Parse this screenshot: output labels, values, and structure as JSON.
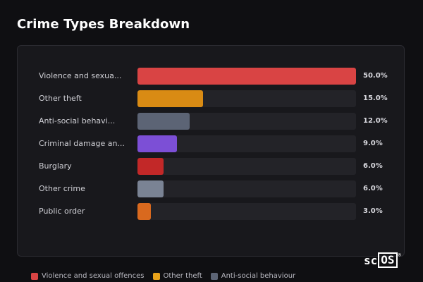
{
  "title": "Crime Types Breakdown",
  "chart_data": {
    "type": "bar",
    "orientation": "horizontal",
    "title": "Crime Types Breakdown",
    "categories": [
      "Violence and sexua...",
      "Other theft",
      "Anti-social behavi...",
      "Criminal damage an...",
      "Burglary",
      "Other crime",
      "Public order"
    ],
    "values": [
      50.0,
      15.0,
      12.0,
      9.0,
      6.0,
      6.0,
      3.0
    ],
    "value_labels": [
      "50.0%",
      "15.0%",
      "12.0%",
      "9.0%",
      "6.0%",
      "6.0%",
      "3.0%"
    ],
    "colors": [
      "#d94444",
      "#d98b14",
      "#5c6475",
      "#7c4fd6",
      "#c22828",
      "#7a8394",
      "#d9691e"
    ],
    "xlim": [
      0,
      50
    ],
    "grid": false,
    "legend_position": "bottom"
  },
  "legend": [
    {
      "label": "Violence and sexual offences",
      "color": "#d94444"
    },
    {
      "label": "Other theft",
      "color": "#e8a21a"
    },
    {
      "label": "Anti-social behaviour",
      "color": "#5c6475"
    }
  ],
  "brand": {
    "prefix": "sc",
    "boxed": "OS",
    "reg": "®"
  }
}
